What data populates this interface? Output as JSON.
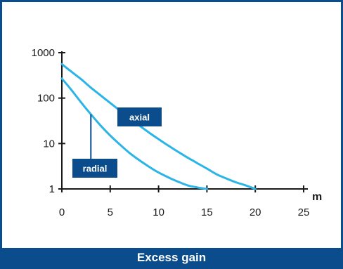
{
  "caption": "Excess gain",
  "colors": {
    "frame": "#0b4d8c",
    "curve": "#2bb5e6",
    "axis": "#1a1a1a",
    "callout_bg": "#0b4d8c"
  },
  "chart_data": {
    "type": "line",
    "title": "",
    "xlabel": "m",
    "ylabel": "",
    "xlim": [
      0,
      25
    ],
    "ylim": [
      1,
      1000
    ],
    "y_scale": "log",
    "grid": false,
    "x_ticks": [
      0,
      5,
      10,
      15,
      20,
      25
    ],
    "x_tick_labels": [
      "0",
      "5",
      "10",
      "15",
      "20",
      "25"
    ],
    "y_ticks": [
      1,
      10,
      100,
      1000
    ],
    "y_tick_labels": [
      "1",
      "10",
      "100",
      "1000"
    ],
    "series": [
      {
        "name": "axial",
        "x": [
          0,
          1,
          2,
          3,
          4,
          5,
          6,
          7,
          8,
          9,
          10,
          11,
          12,
          13,
          14,
          15,
          16,
          17,
          18,
          19,
          20
        ],
        "y": [
          560,
          380,
          260,
          170,
          115,
          78,
          53,
          36,
          25,
          17.5,
          12.5,
          9,
          6.6,
          4.9,
          3.7,
          2.8,
          2.1,
          1.7,
          1.4,
          1.2,
          1.0
        ]
      },
      {
        "name": "radial",
        "x": [
          0,
          1,
          2,
          3,
          4,
          5,
          6,
          7,
          8,
          9,
          10,
          11,
          12,
          13,
          14,
          15
        ],
        "y": [
          270,
          150,
          80,
          44,
          25,
          15,
          9.5,
          6.2,
          4.3,
          3.1,
          2.3,
          1.8,
          1.45,
          1.2,
          1.08,
          1.0
        ]
      }
    ],
    "annotations": [
      {
        "text": "axial",
        "series": "axial",
        "x": 7.7
      },
      {
        "text": "radial",
        "series": "radial",
        "x": 3.0
      }
    ]
  }
}
